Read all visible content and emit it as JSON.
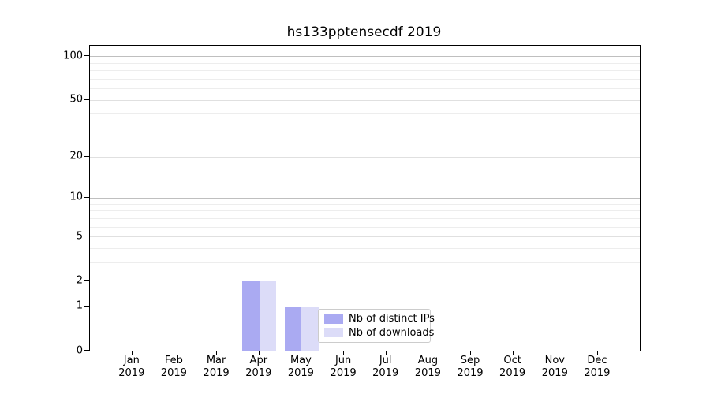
{
  "chart_data": {
    "type": "bar",
    "title": "hs133pptensecdf 2019",
    "x_axis": {
      "months": [
        "Jan",
        "Feb",
        "Mar",
        "Apr",
        "May",
        "Jun",
        "Jul",
        "Aug",
        "Sep",
        "Oct",
        "Nov",
        "Dec"
      ],
      "year": "2019"
    },
    "y_axis": {
      "scale": "log1p",
      "tick_values": [
        0,
        1,
        2,
        5,
        10,
        20,
        50,
        100
      ],
      "tick_labels": [
        "0",
        "1",
        "2",
        "5",
        "10",
        "20",
        "50",
        "100"
      ],
      "minor_tick_values": [
        3,
        4,
        6,
        7,
        8,
        9,
        30,
        40,
        60,
        70,
        80,
        90
      ],
      "decade_values": [
        1,
        10,
        100
      ],
      "ylim": [
        0,
        119
      ],
      "grid": true
    },
    "series": [
      {
        "name": "Nb of distinct IPs",
        "color": "#aaaaf2",
        "values": [
          0,
          0,
          0,
          2,
          1,
          0,
          0,
          0,
          0,
          0,
          0,
          0
        ]
      },
      {
        "name": "Nb of downloads",
        "color": "#dcdcf8",
        "values": [
          0,
          0,
          0,
          2,
          1,
          0,
          0,
          0,
          0,
          0,
          0,
          0
        ]
      }
    ],
    "legend": {
      "position": "inside-lower-middle",
      "labels": [
        "Nb of distinct IPs",
        "Nb of downloads"
      ]
    }
  },
  "colors": {
    "grid_major": "rgba(0,0,0,0.25)",
    "grid_labeled": "rgba(0,0,0,0.12)",
    "grid_minor": "rgba(0,0,0,0.07)",
    "spine": "#000000",
    "background": "#ffffff"
  }
}
